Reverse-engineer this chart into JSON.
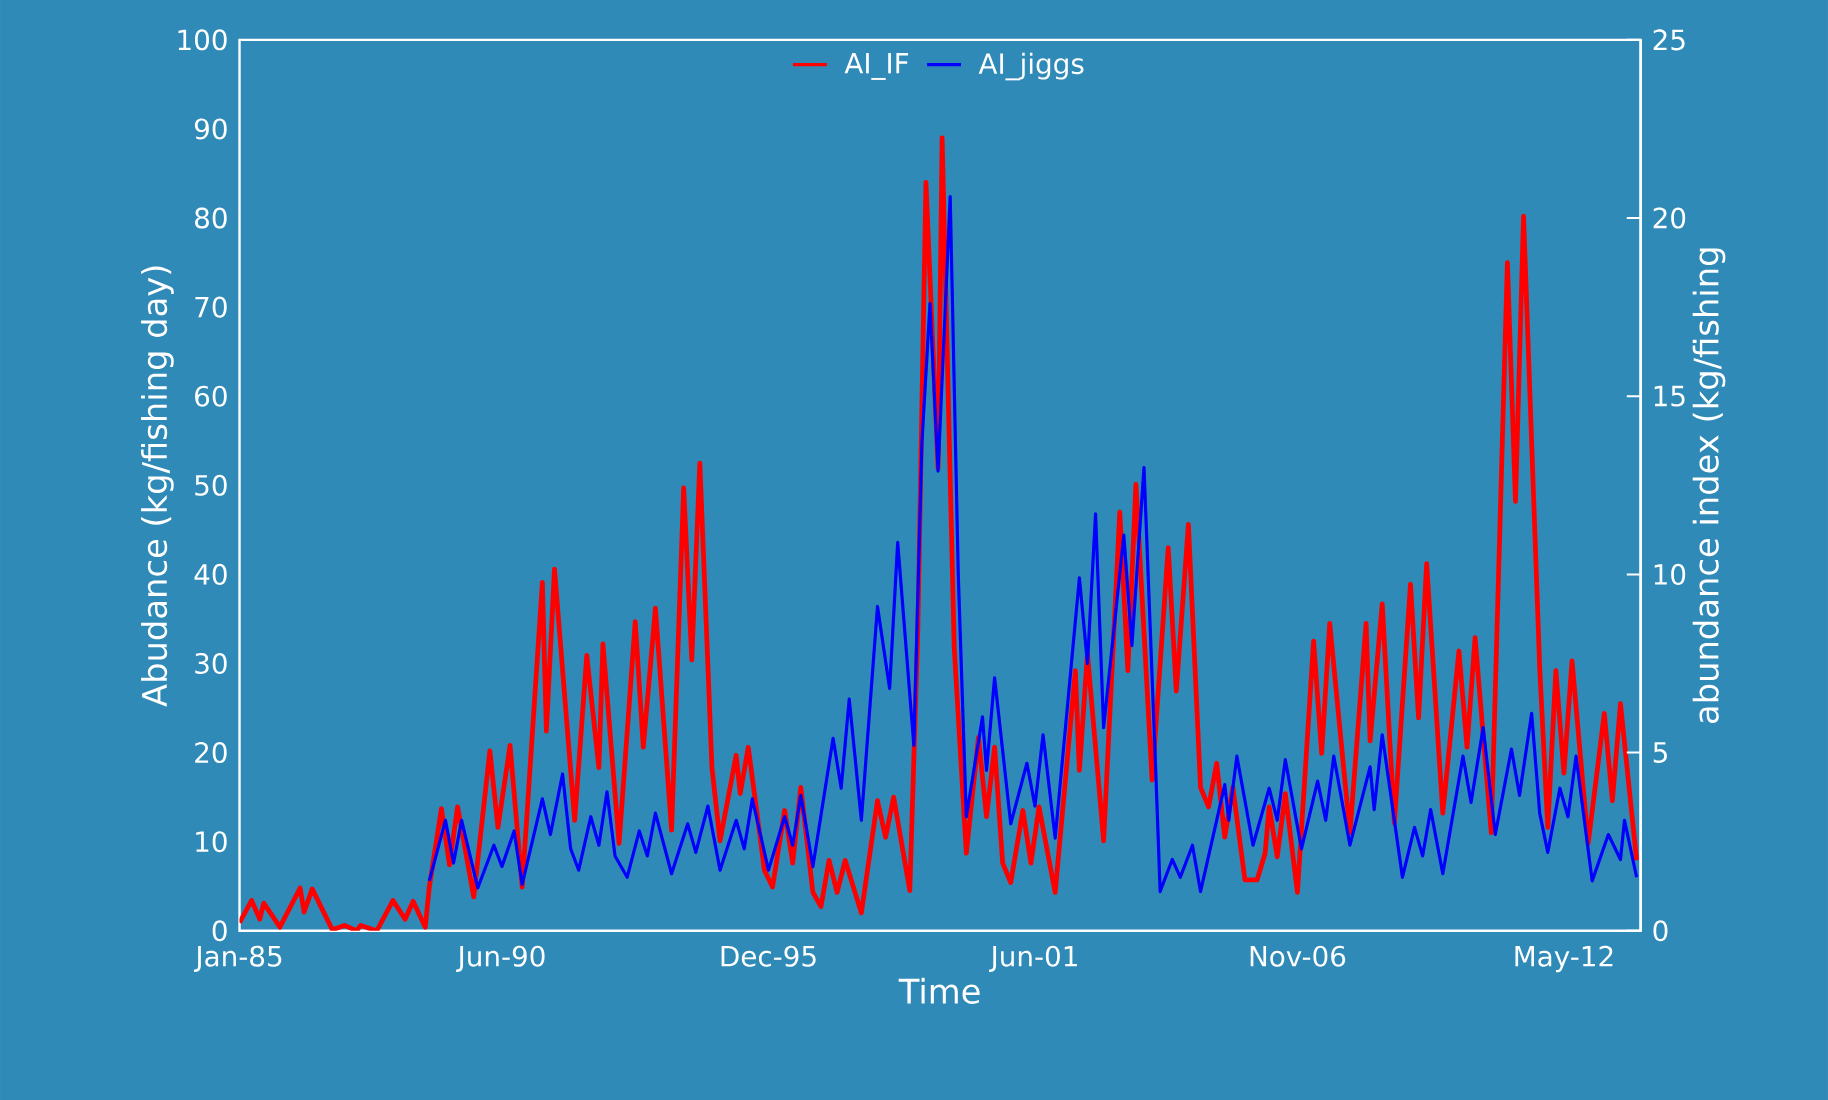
{
  "chart_data": {
    "type": "line",
    "xlabel": "Time",
    "ylabel": "Abudance (kg/fishing day)",
    "y2label": "abundance index (kg/fishing",
    "xlim": [
      "1985-01",
      "2013-12"
    ],
    "xticks": [
      {
        "value": "1985-01",
        "label": "Jan-85"
      },
      {
        "value": "1990-06",
        "label": "Jun-90"
      },
      {
        "value": "1995-12",
        "label": "Dec-95"
      },
      {
        "value": "2001-06",
        "label": "Jun-01"
      },
      {
        "value": "2006-11",
        "label": "Nov-06"
      },
      {
        "value": "2012-05",
        "label": "May-12"
      }
    ],
    "ylim": [
      0,
      100
    ],
    "yticks": [
      0,
      10,
      20,
      30,
      40,
      50,
      60,
      70,
      80,
      90,
      100
    ],
    "y2lim": [
      0,
      25
    ],
    "y2ticks": [
      0,
      5,
      10,
      15,
      20,
      25
    ],
    "legend": "top",
    "series": [
      {
        "name": "AI_IF",
        "color": "#ff0000",
        "x": [
          "1985-01",
          "1985-04",
          "1985-06",
          "1985-07",
          "1985-11",
          "1986-04",
          "1986-05",
          "1986-07",
          "1986-12",
          "1987-03",
          "1987-06",
          "1987-07",
          "1987-11",
          "1988-03",
          "1988-06",
          "1988-08",
          "1988-11",
          "1988-12",
          "1989-03",
          "1989-05",
          "1989-07",
          "1989-11",
          "1990-03",
          "1990-05",
          "1990-08",
          "1990-11",
          "1991-04",
          "1991-05",
          "1991-07",
          "1991-12",
          "1992-03",
          "1992-06",
          "1992-07",
          "1992-11",
          "1993-03",
          "1993-05",
          "1993-08",
          "1993-12",
          "1994-03",
          "1994-05",
          "1994-07",
          "1994-10",
          "1994-12",
          "1995-04",
          "1995-05",
          "1995-07",
          "1995-11",
          "1996-01",
          "1996-04",
          "1996-06",
          "1996-08",
          "1996-11",
          "1997-01",
          "1997-03",
          "1997-05",
          "1997-07",
          "1997-11",
          "1998-03",
          "1998-05",
          "1998-07",
          "1998-11",
          "1999-01",
          "1999-03",
          "1999-06",
          "1999-07",
          "1999-10",
          "2000-01",
          "2000-04",
          "2000-06",
          "2000-08",
          "2000-10",
          "2000-12",
          "2001-03",
          "2001-05",
          "2001-07",
          "2001-11",
          "2002-04",
          "2002-05",
          "2002-07",
          "2002-11",
          "2003-03",
          "2003-05",
          "2003-07",
          "2003-11",
          "2004-03",
          "2004-05",
          "2004-08",
          "2004-11",
          "2005-01",
          "2005-03",
          "2005-05",
          "2005-07",
          "2005-10",
          "2006-01",
          "2006-03",
          "2006-04",
          "2006-06",
          "2006-08",
          "2006-11",
          "2007-03",
          "2007-05",
          "2007-07",
          "2007-12",
          "2008-04",
          "2008-05",
          "2008-08",
          "2008-11",
          "2009-03",
          "2009-05",
          "2009-07",
          "2009-11",
          "2010-03",
          "2010-05",
          "2010-07",
          "2010-11",
          "2011-03",
          "2011-05",
          "2011-07",
          "2011-11",
          "2012-01",
          "2012-03",
          "2012-05",
          "2012-07",
          "2012-11",
          "2013-03",
          "2013-05",
          "2013-07",
          "2013-11"
        ],
        "values": [
          0.9,
          3.4,
          1.3,
          3.1,
          0.4,
          4.8,
          2.1,
          4.7,
          0.1,
          0.6,
          0,
          0.6,
          0,
          3.4,
          1.3,
          3.3,
          0.4,
          4.9,
          13.7,
          7.4,
          13.9,
          3.8,
          20.2,
          11.6,
          20.8,
          4.9,
          39.1,
          22.4,
          40.6,
          12.4,
          30.9,
          18.3,
          32.2,
          9.8,
          34.7,
          20.6,
          36.2,
          11.3,
          49.7,
          30.4,
          52.5,
          18.3,
          10.1,
          19.7,
          15.4,
          20.6,
          6.8,
          4.9,
          13.5,
          7.6,
          16.1,
          4.3,
          2.7,
          7.9,
          4.3,
          7.9,
          2.0,
          14.6,
          10.5,
          15.0,
          4.5,
          34,
          84.0,
          51.9,
          89.0,
          31.8,
          8.7,
          21.7,
          12.8,
          20.6,
          7.6,
          5.4,
          13.5,
          7.6,
          13.9,
          4.3,
          29.2,
          18,
          31.1,
          10.1,
          47.0,
          29.2,
          50.1,
          16.9,
          43.0,
          26.9,
          45.6,
          16.1,
          13.9,
          18.8,
          10.5,
          16.1,
          5.7,
          5.7,
          8.7,
          13.9,
          8.3,
          15.4,
          4.3,
          32.5,
          19.9,
          34.5,
          11,
          34.5,
          21.3,
          36.7,
          12.1,
          38.9,
          23.9,
          41.2,
          13.2,
          31.4,
          20.6,
          32.9,
          11,
          75.0,
          48.2,
          80.2,
          29.5,
          11.6,
          29.2,
          17.7,
          30.3,
          9.8,
          24.4,
          14.6,
          25.5,
          7.9
        ]
      },
      {
        "name": "AI_jiggs",
        "color": "#0000ff",
        "axis": "y2",
        "x": [
          "1988-12",
          "1989-04",
          "1989-06",
          "1989-08",
          "1989-12",
          "1990-04",
          "1990-06",
          "1990-09",
          "1990-11",
          "1991-04",
          "1991-06",
          "1991-09",
          "1991-11",
          "1992-01",
          "1992-04",
          "1992-06",
          "1992-08",
          "1992-10",
          "1993-01",
          "1993-04",
          "1993-06",
          "1993-08",
          "1993-12",
          "1994-04",
          "1994-06",
          "1994-09",
          "1994-12",
          "1995-04",
          "1995-06",
          "1995-08",
          "1995-12",
          "1996-04",
          "1996-06",
          "1996-08",
          "1996-11",
          "1997-04",
          "1997-06",
          "1997-08",
          "1997-11",
          "1998-03",
          "1998-06",
          "1998-08",
          "1998-12",
          "1999-02",
          "1999-04",
          "1999-06",
          "1999-09",
          "1999-11",
          "2000-01",
          "2000-05",
          "2000-06",
          "2000-08",
          "2000-12",
          "2001-04",
          "2001-06",
          "2001-08",
          "2001-11",
          "2002-05",
          "2002-07",
          "2002-09",
          "2002-11",
          "2003-04",
          "2003-06",
          "2003-09",
          "2003-12",
          "2004-01",
          "2004-04",
          "2004-06",
          "2004-09",
          "2004-11",
          "2005-05",
          "2005-06",
          "2005-08",
          "2005-12",
          "2006-04",
          "2006-06",
          "2006-08",
          "2006-12",
          "2007-04",
          "2007-06",
          "2007-08",
          "2007-12",
          "2008-05",
          "2008-06",
          "2008-08",
          "2009-01",
          "2009-04",
          "2009-06",
          "2009-08",
          "2009-11",
          "2010-04",
          "2010-06",
          "2010-09",
          "2010-12",
          "2011-04",
          "2011-06",
          "2011-09",
          "2011-11",
          "2012-01",
          "2012-04",
          "2012-06",
          "2012-08",
          "2012-12",
          "2013-04",
          "2013-07",
          "2013-08",
          "2013-11"
        ],
        "values": [
          1.4,
          3.1,
          1.9,
          3.1,
          1.2,
          2.4,
          1.8,
          2.8,
          1.3,
          3.7,
          2.7,
          4.4,
          2.3,
          1.7,
          3.2,
          2.4,
          3.9,
          2.1,
          1.5,
          2.8,
          2.1,
          3.3,
          1.6,
          3.0,
          2.2,
          3.5,
          1.7,
          3.1,
          2.3,
          3.7,
          1.7,
          3.2,
          2.4,
          3.8,
          1.8,
          5.4,
          4.0,
          6.5,
          3.1,
          9.1,
          6.8,
          10.9,
          5.2,
          13.7,
          17.6,
          12.9,
          20.6,
          10.0,
          3.2,
          6.0,
          4.5,
          7.1,
          3.0,
          4.7,
          3.5,
          5.5,
          2.6,
          9.9,
          7.5,
          11.7,
          5.7,
          11.1,
          8.0,
          13.0,
          4.2,
          1.1,
          2.0,
          1.5,
          2.4,
          1.1,
          4.1,
          3.1,
          4.9,
          2.4,
          4.0,
          3.1,
          4.8,
          2.3,
          4.2,
          3.1,
          4.9,
          2.4,
          4.6,
          3.4,
          5.5,
          1.5,
          2.9,
          2.1,
          3.4,
          1.6,
          4.9,
          3.6,
          5.7,
          2.7,
          5.1,
          3.8,
          6.1,
          3.3,
          2.2,
          4.0,
          3.2,
          4.9,
          1.4,
          2.7,
          2.0,
          3.1,
          1.5
        ]
      }
    ]
  }
}
